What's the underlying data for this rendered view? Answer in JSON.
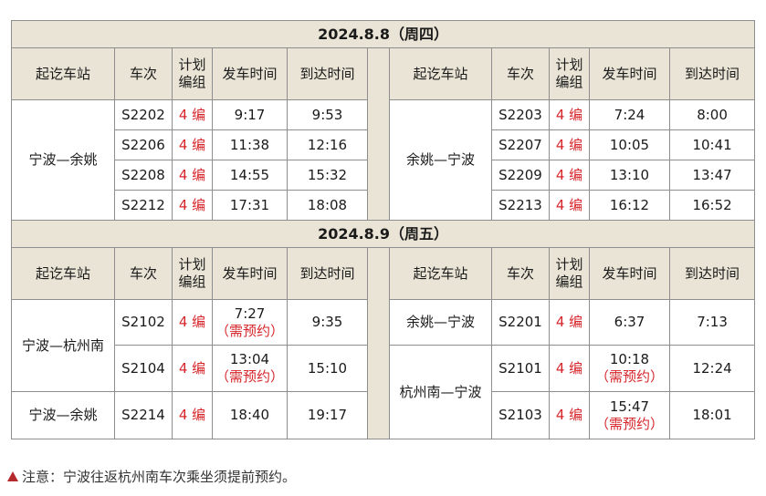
{
  "headers": {
    "station": "起讫车站",
    "train": "车次",
    "plan_line1": "计划",
    "plan_line2": "编组",
    "depart": "发车时间",
    "arrive": "到达时间"
  },
  "day1": {
    "date": "2024.8.8（周四）",
    "left": {
      "station": "宁波—余姚",
      "rows": [
        {
          "train": "S2202",
          "formation": "4 编",
          "depart": "9:17",
          "arrive": "9:53"
        },
        {
          "train": "S2206",
          "formation": "4 编",
          "depart": "11:38",
          "arrive": "12:16"
        },
        {
          "train": "S2208",
          "formation": "4 编",
          "depart": "14:55",
          "arrive": "15:32"
        },
        {
          "train": "S2212",
          "formation": "4 编",
          "depart": "17:31",
          "arrive": "18:08"
        }
      ]
    },
    "right": {
      "station": "余姚—宁波",
      "rows": [
        {
          "train": "S2203",
          "formation": "4 编",
          "depart": "7:24",
          "arrive": "8:00"
        },
        {
          "train": "S2207",
          "formation": "4 编",
          "depart": "10:05",
          "arrive": "10:41"
        },
        {
          "train": "S2209",
          "formation": "4 编",
          "depart": "13:10",
          "arrive": "13:47"
        },
        {
          "train": "S2213",
          "formation": "4 编",
          "depart": "16:12",
          "arrive": "16:52"
        }
      ]
    }
  },
  "day2": {
    "date": "2024.8.9（周五）",
    "left": [
      {
        "station": "宁波—杭州南",
        "train": "S2102",
        "formation": "4 编",
        "depart": "7:27",
        "reserve": "（需预约）",
        "arrive": "9:35"
      },
      {
        "train": "S2104",
        "formation": "4 编",
        "depart": "13:04",
        "reserve": "（需预约）",
        "arrive": "15:10"
      },
      {
        "station": "宁波—余姚",
        "train": "S2214",
        "formation": "4 编",
        "depart": "18:40",
        "arrive": "19:17"
      }
    ],
    "right": [
      {
        "station": "余姚—宁波",
        "train": "S2201",
        "formation": "4 编",
        "depart": "6:37",
        "arrive": "7:13"
      },
      {
        "station": "杭州南—宁波",
        "train": "S2101",
        "formation": "4 编",
        "depart": "10:18",
        "reserve": "（需预约）",
        "arrive": "12:24"
      },
      {
        "train": "S2103",
        "formation": "4 编",
        "depart": "15:47",
        "reserve": "（需预约）",
        "arrive": "18:01"
      }
    ]
  },
  "note": "注意：宁波往返杭州南车次乘坐须提前预约。",
  "colors": {
    "header_bg": "#e9e4d5",
    "border": "#8e8e8e",
    "formation_red": "#d6262b",
    "note_triangle": "#b4292b"
  }
}
